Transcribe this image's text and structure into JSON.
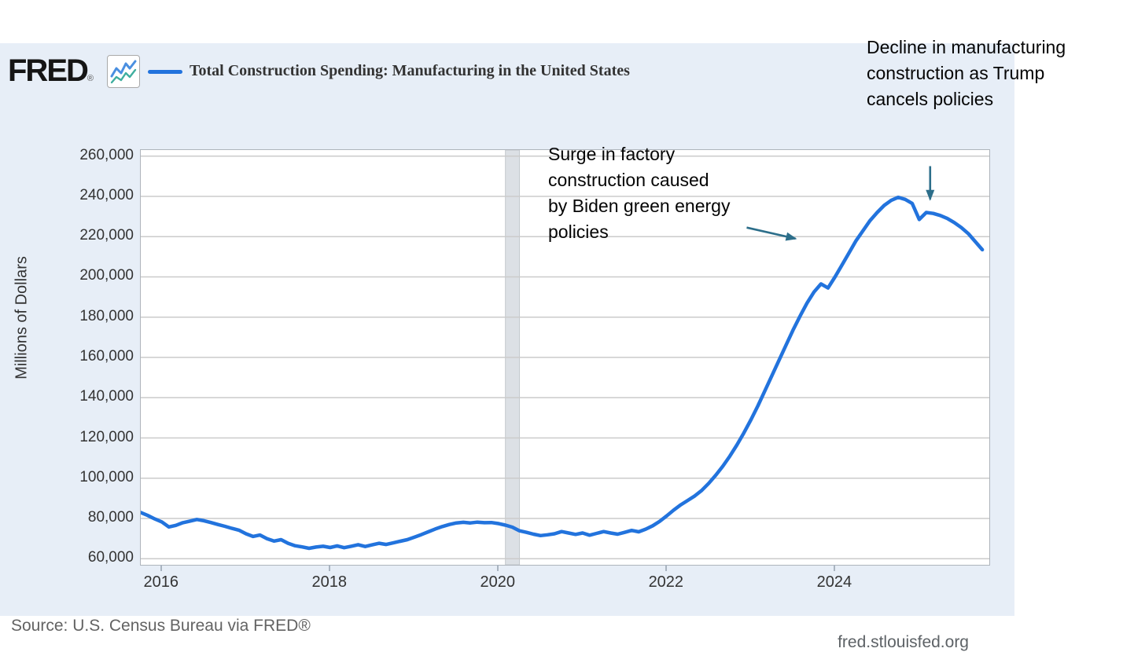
{
  "header": {
    "logo_text": "FRED",
    "logo_reg": "®",
    "series_title": "Total Construction Spending: Manufacturing in the United States"
  },
  "annotations": {
    "surge": {
      "text": "Surge in factory\n construction caused\n by Biden green energy\n policies"
    },
    "decline": {
      "text": "Decline in manufacturing\n construction as Trump\n cancels policies"
    }
  },
  "footer": {
    "source": "Source: U.S. Census Bureau via FRED®",
    "site": "fred.stlouisfed.org"
  },
  "colors": {
    "panel_bg": "#e7eef7",
    "plot_bg": "#ffffff",
    "plot_border": "#aeb4bb",
    "gridline": "#cbcbcb",
    "line": "#2273dd",
    "recession_band": "#dce0e5",
    "recession_band_edge": "#c3c8cd",
    "arrow": "#2c6e8a",
    "label_text": "#333333"
  },
  "chart_data": {
    "type": "line",
    "title": "Total Construction Spending: Manufacturing in the United States",
    "xlabel": "",
    "ylabel": "Millions of Dollars",
    "grid": "horizontal",
    "legend_position": "top",
    "xlim": [
      2015.75,
      2025.833
    ],
    "ylim": [
      57000,
      263000
    ],
    "x_ticks": [
      2016,
      2018,
      2020,
      2022,
      2024
    ],
    "y_ticks": [
      60000,
      80000,
      100000,
      120000,
      140000,
      160000,
      180000,
      200000,
      220000,
      240000,
      260000
    ],
    "recession_bands": [
      {
        "start": 2020.083,
        "end": 2020.25
      }
    ],
    "series": [
      {
        "name": "Total Construction Spending: Manufacturing in the United States",
        "color": "#2273dd",
        "start": "2015-10",
        "frequency": "monthly",
        "values": [
          83000,
          81500,
          79800,
          78300,
          75800,
          76600,
          77900,
          78700,
          79500,
          78900,
          78000,
          77000,
          76100,
          75100,
          74200,
          72400,
          71100,
          71800,
          70000,
          68800,
          69500,
          67700,
          66500,
          65900,
          65200,
          65800,
          66200,
          65600,
          66400,
          65500,
          66200,
          67000,
          66100,
          66900,
          67700,
          67100,
          67900,
          68700,
          69500,
          70700,
          72000,
          73400,
          74800,
          76000,
          77000,
          77800,
          78100,
          77800,
          78200,
          77900,
          78000,
          77500,
          76700,
          75700,
          73900,
          73100,
          72200,
          71500,
          71900,
          72400,
          73500,
          72800,
          72100,
          72800,
          71700,
          72600,
          73500,
          72800,
          72200,
          73100,
          74100,
          73400,
          74700,
          76400,
          78600,
          81300,
          84200,
          86800,
          89000,
          91200,
          94000,
          97500,
          101500,
          106000,
          111000,
          116500,
          122500,
          129000,
          136000,
          143500,
          151000,
          158500,
          166000,
          173500,
          180500,
          187000,
          192500,
          196500,
          194500,
          200000,
          206000,
          212000,
          218000,
          223000,
          228000,
          232000,
          235500,
          238000,
          239500,
          238500,
          236500,
          228500,
          232000,
          231500,
          230500,
          229000,
          227000,
          224500,
          221500,
          217500,
          213500
        ]
      }
    ],
    "arrows": [
      {
        "name": "surge-arrow",
        "from": [
          2022.95,
          224500
        ],
        "to": [
          2023.53,
          219000
        ]
      },
      {
        "name": "decline-arrow",
        "from": [
          2025.13,
          255000
        ],
        "to": [
          2025.13,
          238500
        ]
      }
    ],
    "annotation_texts": [
      "Surge in factory construction caused by Biden green energy policies",
      "Decline in manufacturing construction as Trump cancels policies"
    ]
  }
}
